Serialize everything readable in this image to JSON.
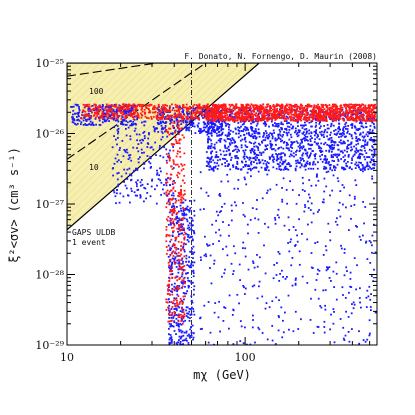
{
  "chart_data": {
    "type": "scatter",
    "title": "",
    "credit": "F. Donato, N. Fornengo, D. Maurin (2008)",
    "xlabel": "mχ (GeV)",
    "ylabel": "ξ²<σv> (cm³ s⁻¹)",
    "xscale": "log",
    "yscale": "log",
    "xlim": [
      10,
      550
    ],
    "ylim": [
      1e-29,
      1e-25
    ],
    "x_ticks": [
      {
        "value": 10,
        "label": "10"
      },
      {
        "value": 100,
        "label": "100"
      }
    ],
    "y_ticks": [
      {
        "value": 1e-29,
        "label": "10⁻²⁹"
      },
      {
        "value": 1e-28,
        "label": "10⁻²⁸"
      },
      {
        "value": 1e-27,
        "label": "10⁻²⁷"
      },
      {
        "value": 1e-26,
        "label": "10⁻²⁶"
      },
      {
        "value": 1e-25,
        "label": "10⁻²⁵"
      }
    ],
    "grid": false,
    "legend": "none",
    "annotations": {
      "label_100": "100",
      "label_10": "10",
      "gaps_line1": "GAPS ULDB",
      "gaps_line2": "1 event"
    },
    "exclusion_region": {
      "description_color": "#f7efb0",
      "boundary": [
        [
          10,
          4.3e-28
        ],
        [
          120,
          1e-25
        ]
      ]
    },
    "reference_lines": [
      {
        "label": "100",
        "style": "long-dash",
        "points": [
          [
            10,
            6.5e-26
          ],
          [
            32,
            1e-25
          ]
        ]
      },
      {
        "label": "10",
        "style": "long-dash",
        "points": [
          [
            10,
            4.3e-27
          ],
          [
            60,
            1e-25
          ]
        ]
      },
      {
        "label": "",
        "style": "dash-dot",
        "points": [
          [
            50,
            1e-29
          ],
          [
            50,
            1e-25
          ]
        ]
      }
    ],
    "series": [
      {
        "color": "#1a1aff",
        "regions": [
          {
            "x": [
              10.5,
              25
            ],
            "y": [
              1.3e-26,
              2.6e-26
            ],
            "n": 260
          },
          {
            "x": [
              18,
              40
            ],
            "y": [
              1e-27,
              1.5e-26
            ],
            "n": 220
          },
          {
            "x": [
              37,
              52
            ],
            "y": [
              1e-29,
              1.2e-27
            ],
            "n": 420
          },
          {
            "x": [
              32,
              75
            ],
            "y": [
              1e-26,
              2.4e-26
            ],
            "n": 300
          },
          {
            "x": [
              60,
              540
            ],
            "y": [
              3e-27,
              2.2e-26
            ],
            "n": 1400
          },
          {
            "x": [
              55,
              540
            ],
            "y": [
              1e-29,
              3e-27
            ],
            "n": 420
          }
        ]
      },
      {
        "color": "#ff1a1a",
        "regions": [
          {
            "x": [
              12,
              75
            ],
            "y": [
              1.6e-26,
              2.6e-26
            ],
            "n": 500
          },
          {
            "x": [
              36,
              46
            ],
            "y": [
              2e-29,
              1.5e-26
            ],
            "n": 320
          },
          {
            "x": [
              60,
              540
            ],
            "y": [
              1.5e-26,
              2.6e-26
            ],
            "n": 1300
          }
        ]
      }
    ]
  }
}
